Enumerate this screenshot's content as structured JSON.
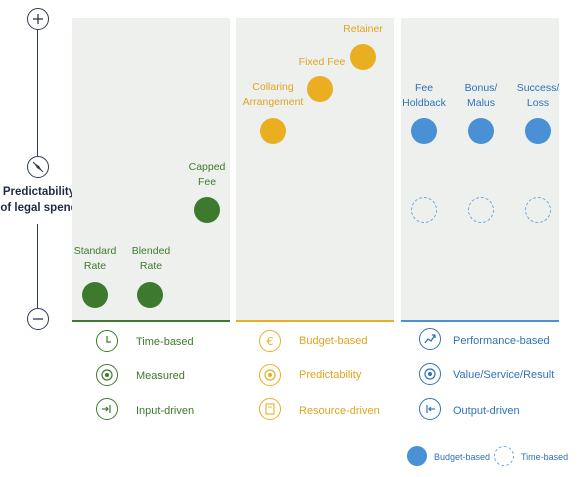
{
  "axis": {
    "label_line1": "Predictability",
    "label_line2": "of legal spend",
    "top_symbol": "plus-icon",
    "bottom_symbol": "minus-icon",
    "middle_symbol": "compass-icon"
  },
  "colors": {
    "green": "#3e7a2e",
    "amber": "#eaae22",
    "blue": "#4a90d4",
    "navy": "#2d3a52"
  },
  "groups": [
    {
      "id": "time",
      "color": "#3e7a2e",
      "items": [
        {
          "label_lines": [
            "Standard",
            "Rate"
          ]
        },
        {
          "label_lines": [
            "Blended",
            "Rate"
          ]
        },
        {
          "label_lines": [
            "Capped",
            "Fee"
          ]
        }
      ],
      "legend": [
        "Time-based",
        "Measured",
        "Input-driven"
      ],
      "legend_icons": [
        "clock-icon",
        "target-icon",
        "input-arrow-icon"
      ]
    },
    {
      "id": "budget",
      "color": "#eaae22",
      "items": [
        {
          "label_lines": [
            "Collaring",
            "Arrangement"
          ]
        },
        {
          "label_lines": [
            "Fixed Fee"
          ]
        },
        {
          "label_lines": [
            "Retainer"
          ]
        }
      ],
      "legend": [
        "Budget-based",
        "Predictability",
        "Resource-driven"
      ],
      "legend_icons": [
        "euro-icon",
        "target-icon",
        "document-icon"
      ]
    },
    {
      "id": "performance",
      "color": "#4a90d4",
      "items": [
        {
          "label_lines": [
            "Fee",
            "Holdback"
          ]
        },
        {
          "label_lines": [
            "Bonus/",
            "Malus"
          ]
        },
        {
          "label_lines": [
            "Success/",
            "Loss"
          ]
        }
      ],
      "legend": [
        "Performance-based",
        "Value/Service/Result",
        "Output-driven"
      ],
      "legend_icons": [
        "trend-chart-icon",
        "target-icon",
        "output-arrow-icon"
      ]
    }
  ],
  "key": {
    "filled_label": "Budget-based",
    "dashed_label": "Time-based"
  }
}
